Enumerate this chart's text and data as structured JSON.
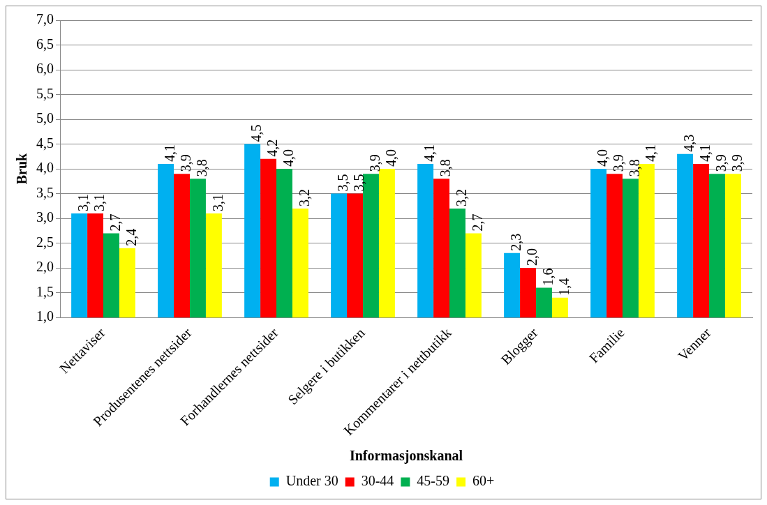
{
  "chart_data": {
    "type": "bar",
    "xlabel": "Informasjonskanal",
    "ylabel": "Bruk",
    "categories": [
      "Nettaviser",
      "Produsentenes nettsider",
      "Forhandlernes nettsider",
      "Selgere i butikken",
      "Kommentarer i nettbutikk",
      "Blogger",
      "Familie",
      "Venner"
    ],
    "series": [
      {
        "name": "Under 30",
        "color": "#00b0f0",
        "values": [
          3.1,
          4.1,
          4.5,
          3.5,
          4.1,
          2.3,
          4.0,
          4.3
        ],
        "value_labels": [
          "3,1",
          "4,1",
          "4,5",
          "3,5",
          "4,1",
          "2,3",
          "4,0",
          "4,3"
        ]
      },
      {
        "name": "30-44",
        "color": "#ff0000",
        "values": [
          3.1,
          3.9,
          4.2,
          3.5,
          3.8,
          2.0,
          3.9,
          4.1
        ],
        "value_labels": [
          "3,1",
          "3,9",
          "4,2",
          "3,5",
          "3,8",
          "2,0",
          "3,9",
          "4,1"
        ]
      },
      {
        "name": "45-59",
        "color": "#00b050",
        "values": [
          2.7,
          3.8,
          4.0,
          3.9,
          3.2,
          1.6,
          3.8,
          3.9
        ],
        "value_labels": [
          "2,7",
          "3,8",
          "4,0",
          "3,9",
          "3,2",
          "1,6",
          "3,8",
          "3,9"
        ]
      },
      {
        "name": "60+",
        "color": "#ffff00",
        "values": [
          2.4,
          3.1,
          3.2,
          4.0,
          2.7,
          1.4,
          4.1,
          3.9
        ],
        "value_labels": [
          "2,4",
          "3,1",
          "3,2",
          "4,0",
          "2,7",
          "1,4",
          "4,1",
          "3,9"
        ]
      }
    ],
    "ylim": [
      1.0,
      7.0
    ],
    "yticks": [
      {
        "value": 1.0,
        "label": "1,0"
      },
      {
        "value": 1.5,
        "label": "1,5"
      },
      {
        "value": 2.0,
        "label": "2,0"
      },
      {
        "value": 2.5,
        "label": "2,5"
      },
      {
        "value": 3.0,
        "label": "3,0"
      },
      {
        "value": 3.5,
        "label": "3,5"
      },
      {
        "value": 4.0,
        "label": "4,0"
      },
      {
        "value": 4.5,
        "label": "4,5"
      },
      {
        "value": 5.0,
        "label": "5,0"
      },
      {
        "value": 5.5,
        "label": "5,5"
      },
      {
        "value": 6.0,
        "label": "6,0"
      },
      {
        "value": 6.5,
        "label": "6,5"
      },
      {
        "value": 7.0,
        "label": "7,0"
      }
    ],
    "grid": "y",
    "legend": "bottom"
  }
}
